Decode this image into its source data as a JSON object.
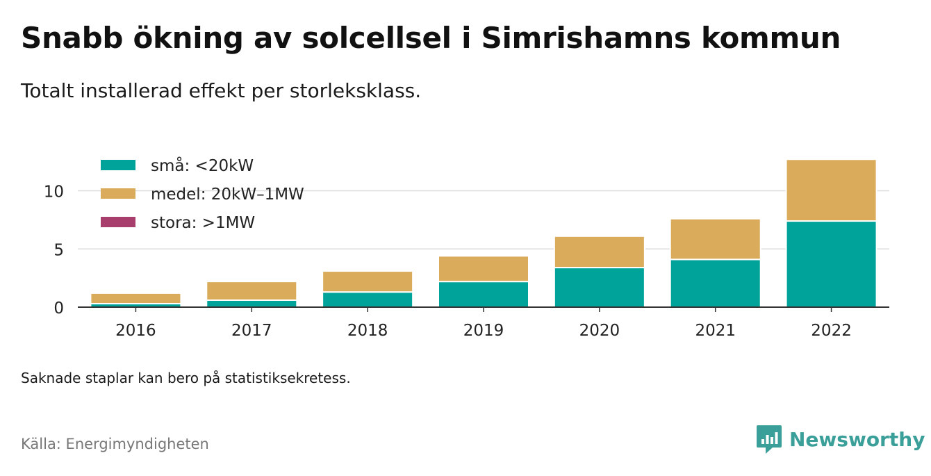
{
  "title": "Snabb ökning av solcellsel i Simrishamns kommun",
  "subtitle": "Totalt installerad effekt per storleksklass.",
  "note": "Saknade staplar kan bero på statistiksekretess.",
  "source": "Källa: Energimyndigheten",
  "logo": {
    "text": "Newsworthy",
    "icon": "newsworthy-logo-icon",
    "color": "#3a9e99"
  },
  "chart_data": {
    "type": "bar",
    "stacked": true,
    "categories": [
      "2016",
      "2017",
      "2018",
      "2019",
      "2020",
      "2021",
      "2022"
    ],
    "series": [
      {
        "name": "små: <20kW",
        "color": "#00a399",
        "values": [
          0.3,
          0.6,
          1.3,
          2.2,
          3.4,
          4.1,
          7.4
        ]
      },
      {
        "name": "medel: 20kW–1MW",
        "color": "#d9ab5a",
        "values": [
          0.9,
          1.6,
          1.8,
          2.2,
          2.7,
          3.5,
          5.3
        ]
      },
      {
        "name": "stora: >1MW",
        "color": "#a83e6b",
        "values": [
          0,
          0,
          0,
          0,
          0,
          0,
          0
        ]
      }
    ],
    "yticks": [
      "0",
      "5",
      "10"
    ],
    "ylim": [
      0,
      13
    ],
    "grid": true,
    "legend_position": "top-left"
  }
}
